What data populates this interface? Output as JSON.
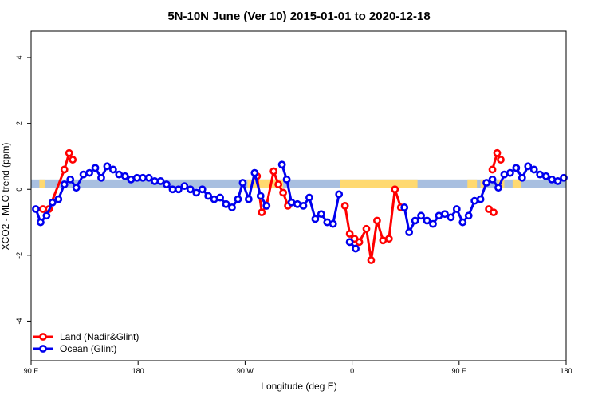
{
  "chart_data": {
    "type": "line",
    "title": "5N-10N June (Ver 10)   2015-01-01 to 2020-12-18",
    "xlabel": "Longitude (deg E)",
    "ylabel": "XCO2 - MLO trend (ppm)",
    "xlim": [
      0,
      450
    ],
    "ylim": [
      -5.2,
      4.8
    ],
    "x_ticks": [
      {
        "value": 0,
        "label": "90 E"
      },
      {
        "value": 90,
        "label": "180"
      },
      {
        "value": 180,
        "label": "90 W"
      },
      {
        "value": 270,
        "label": "0"
      },
      {
        "value": 360,
        "label": "90 E"
      },
      {
        "value": 450,
        "label": "180"
      }
    ],
    "y_ticks": [
      -4,
      -2,
      0,
      2,
      4
    ],
    "grid": false,
    "legend_position": "bottom-left",
    "band": {
      "y_range": [
        0.05,
        0.3
      ],
      "ocean_color": "#a8bfe0",
      "land_color": "#ffd970",
      "land_segments": [
        [
          7,
          12
        ],
        [
          182,
          212
        ],
        [
          260,
          325
        ],
        [
          367,
          375
        ],
        [
          378,
          382
        ],
        [
          392,
          398
        ],
        [
          405,
          412
        ]
      ]
    },
    "series": [
      {
        "name": "Land (Nadir&Glint)",
        "color": "#ff0000",
        "segments": [
          [
            [
              10,
              -0.6
            ],
            [
              15,
              -0.6
            ],
            [
              28,
              0.6
            ],
            [
              32,
              1.1
            ],
            [
              35,
              0.9
            ]
          ],
          [
            [
              190,
              0.4
            ],
            [
              194,
              -0.7
            ],
            [
              198,
              -0.5
            ],
            [
              204,
              0.55
            ],
            [
              208,
              0.15
            ],
            [
              212,
              -0.1
            ],
            [
              216,
              -0.5
            ]
          ],
          [
            [
              264,
              -0.5
            ],
            [
              268,
              -1.35
            ],
            [
              272,
              -1.5
            ],
            [
              276,
              -1.6
            ],
            [
              282,
              -1.2
            ],
            [
              286,
              -2.15
            ],
            [
              291,
              -0.95
            ],
            [
              296,
              -1.55
            ],
            [
              301,
              -1.5
            ],
            [
              306,
              0.0
            ],
            [
              311,
              -0.55
            ]
          ],
          [
            [
              385,
              -0.6
            ],
            [
              389,
              -0.7
            ]
          ],
          [
            [
              388,
              0.6
            ],
            [
              392,
              1.1
            ],
            [
              395,
              0.9
            ]
          ]
        ]
      },
      {
        "name": "Ocean (Glint)",
        "color": "#0000ee",
        "segments": [
          [
            [
              4,
              -0.6
            ],
            [
              8,
              -1.0
            ],
            [
              13,
              -0.8
            ],
            [
              18,
              -0.4
            ],
            [
              23,
              -0.3
            ],
            [
              28,
              0.15
            ],
            [
              33,
              0.3
            ],
            [
              38,
              0.05
            ],
            [
              44,
              0.45
            ],
            [
              49,
              0.5
            ],
            [
              54,
              0.65
            ],
            [
              59,
              0.35
            ],
            [
              64,
              0.7
            ],
            [
              69,
              0.6
            ],
            [
              74,
              0.45
            ],
            [
              79,
              0.4
            ],
            [
              84,
              0.3
            ],
            [
              89,
              0.35
            ],
            [
              94,
              0.35
            ],
            [
              99,
              0.35
            ],
            [
              104,
              0.25
            ],
            [
              109,
              0.25
            ],
            [
              114,
              0.15
            ],
            [
              119,
              0.0
            ],
            [
              124,
              0.0
            ],
            [
              129,
              0.1
            ],
            [
              134,
              0.0
            ],
            [
              139,
              -0.1
            ],
            [
              144,
              0.0
            ],
            [
              149,
              -0.2
            ],
            [
              154,
              -0.3
            ],
            [
              159,
              -0.25
            ],
            [
              164,
              -0.45
            ],
            [
              169,
              -0.55
            ],
            [
              174,
              -0.3
            ],
            [
              178,
              0.2
            ],
            [
              183,
              -0.3
            ],
            [
              188,
              0.5
            ],
            [
              193,
              -0.2
            ],
            [
              198,
              -0.5
            ]
          ],
          [
            [
              211,
              0.75
            ],
            [
              215,
              0.3
            ],
            [
              219,
              -0.4
            ],
            [
              224,
              -0.45
            ],
            [
              229,
              -0.5
            ],
            [
              234,
              -0.25
            ],
            [
              239,
              -0.9
            ],
            [
              244,
              -0.75
            ],
            [
              249,
              -1.0
            ],
            [
              254,
              -1.05
            ],
            [
              259,
              -0.15
            ]
          ],
          [
            [
              268,
              -1.6
            ],
            [
              273,
              -1.8
            ]
          ],
          [
            [
              314,
              -0.55
            ],
            [
              318,
              -1.3
            ],
            [
              323,
              -0.95
            ],
            [
              328,
              -0.8
            ],
            [
              333,
              -0.95
            ],
            [
              338,
              -1.05
            ],
            [
              343,
              -0.8
            ],
            [
              348,
              -0.75
            ],
            [
              353,
              -0.85
            ],
            [
              358,
              -0.6
            ],
            [
              363,
              -1.0
            ],
            [
              368,
              -0.8
            ],
            [
              373,
              -0.35
            ],
            [
              378,
              -0.3
            ],
            [
              383,
              0.2
            ],
            [
              388,
              0.3
            ],
            [
              393,
              0.05
            ],
            [
              398,
              0.45
            ],
            [
              403,
              0.5
            ],
            [
              408,
              0.65
            ],
            [
              413,
              0.35
            ],
            [
              418,
              0.7
            ],
            [
              423,
              0.6
            ],
            [
              428,
              0.45
            ],
            [
              433,
              0.4
            ],
            [
              438,
              0.3
            ],
            [
              443,
              0.25
            ],
            [
              448,
              0.35
            ]
          ]
        ]
      }
    ]
  }
}
